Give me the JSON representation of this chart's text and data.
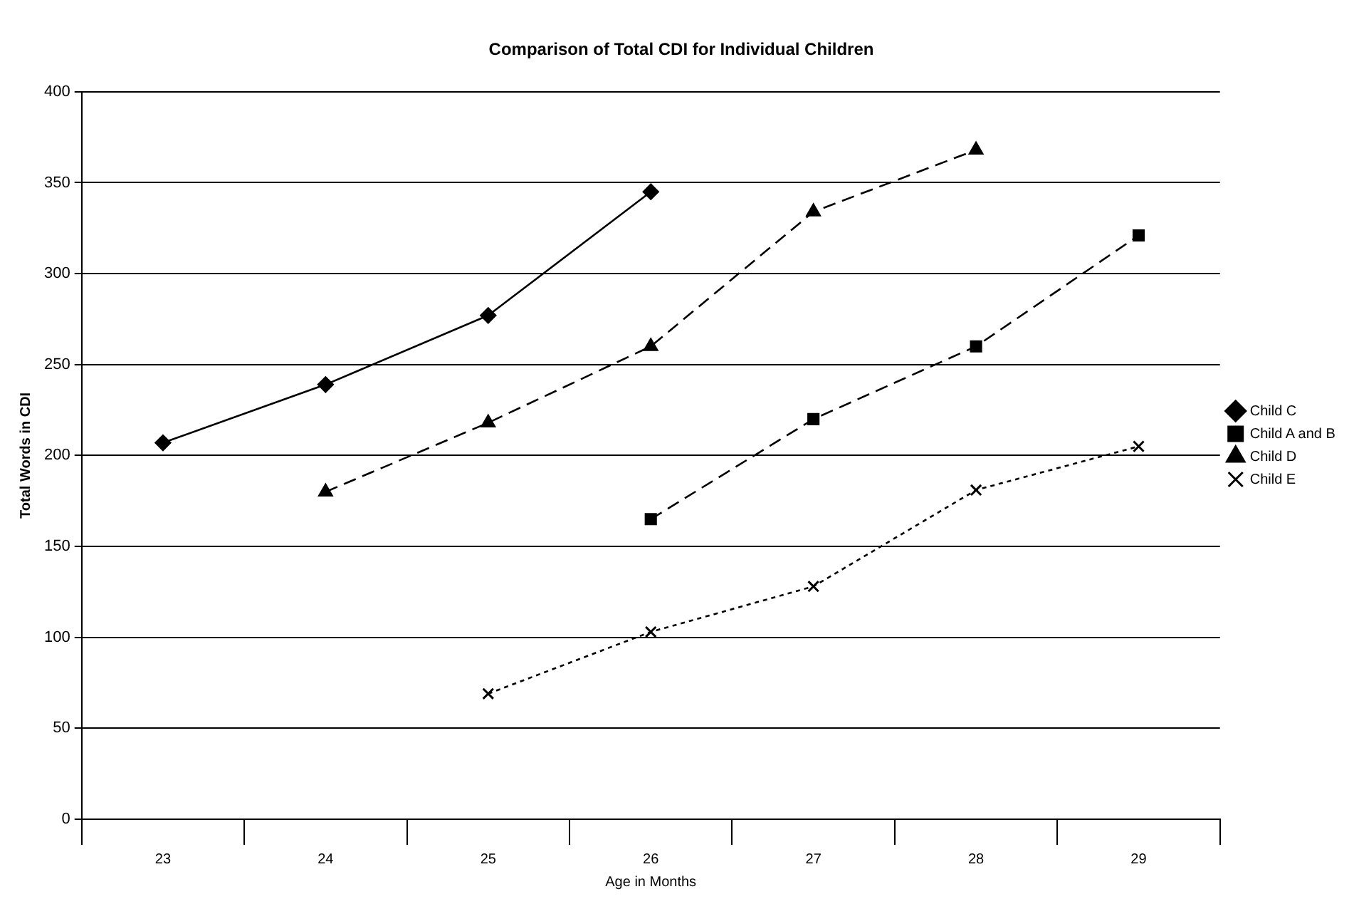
{
  "chart_data": {
    "type": "line",
    "title": "Comparison of Total CDI for Individual Children",
    "xlabel": "Age in Months",
    "ylabel": "Total Words in CDI",
    "categories": [
      "23",
      "24",
      "25",
      "26",
      "27",
      "28",
      "29"
    ],
    "series": [
      {
        "name": "Child C",
        "color": "#000000",
        "marker": "diamond",
        "line_style": "solid",
        "values": [
          207,
          239,
          277,
          345,
          null,
          null,
          null
        ]
      },
      {
        "name": "Child A and B",
        "color": "#000000",
        "marker": "square",
        "line_style": "dashed",
        "values": [
          null,
          null,
          null,
          165,
          220,
          260,
          321
        ]
      },
      {
        "name": "Child D",
        "color": "#000000",
        "marker": "triangle",
        "line_style": "dashed",
        "values": [
          null,
          180,
          218,
          260,
          334,
          368,
          null
        ]
      },
      {
        "name": "Child E",
        "color": "#000000",
        "marker": "cross",
        "line_style": "dotted",
        "values": [
          null,
          null,
          69,
          103,
          128,
          181,
          205
        ]
      }
    ],
    "ylim": [
      0,
      400
    ],
    "yticks": [
      0,
      50,
      100,
      150,
      200,
      250,
      300,
      350,
      400
    ],
    "grid": "y",
    "legend": "right"
  }
}
